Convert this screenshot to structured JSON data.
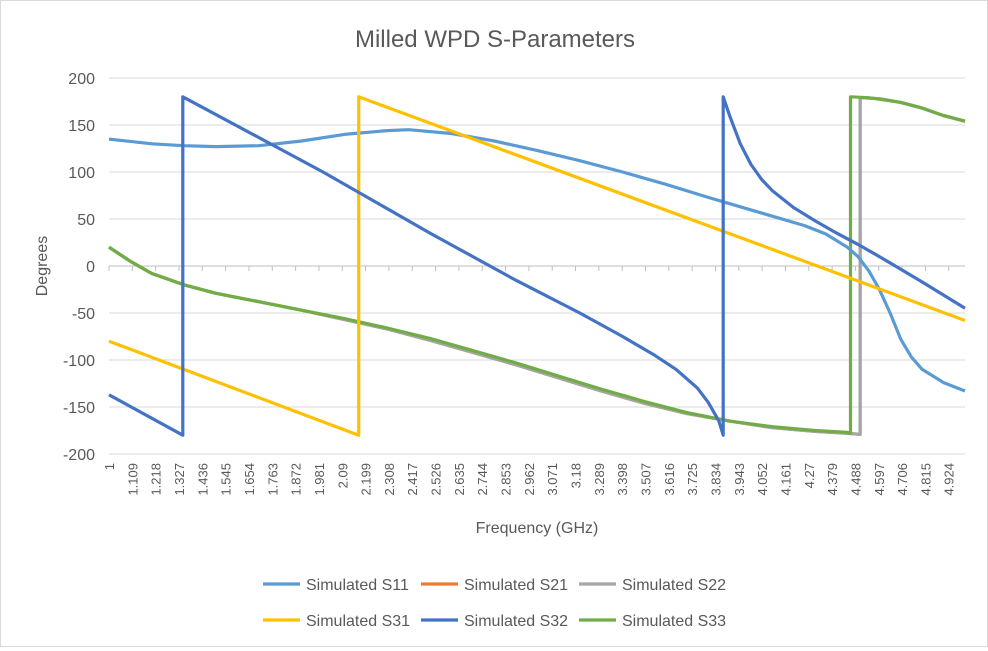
{
  "chart_data": {
    "type": "line",
    "title": "Milled WPD S-Parameters",
    "xlabel": "Frequency (GHz)",
    "ylabel": "Degrees",
    "xlim": [
      1,
      5
    ],
    "ylim": [
      -200,
      200
    ],
    "y_ticks": [
      200,
      150,
      100,
      50,
      0,
      -50,
      -100,
      -150,
      -200
    ],
    "x_tick_labels": [
      "1",
      "1.109",
      "1.218",
      "1.327",
      "1.436",
      "1.545",
      "1.654",
      "1.763",
      "1.872",
      "1.981",
      "2.09",
      "2.199",
      "2.308",
      "2.417",
      "2.526",
      "2.635",
      "2.744",
      "2.853",
      "2.962",
      "3.071",
      "3.18",
      "3.289",
      "3.398",
      "3.507",
      "3.616",
      "3.725",
      "3.834",
      "3.943",
      "4.052",
      "4.161",
      "4.27",
      "4.379",
      "4.488",
      "4.597",
      "4.706",
      "4.815",
      "4.924"
    ],
    "grid": "horizontal",
    "legend_position": "bottom",
    "series": [
      {
        "name": "Simulated S11",
        "color": "#5b9bd5",
        "points": [
          [
            1,
            135
          ],
          [
            1.2,
            130
          ],
          [
            1.35,
            128
          ],
          [
            1.5,
            127
          ],
          [
            1.7,
            128
          ],
          [
            1.9,
            133
          ],
          [
            2.1,
            140
          ],
          [
            2.3,
            144
          ],
          [
            2.4,
            145
          ],
          [
            2.6,
            141
          ],
          [
            2.8,
            133
          ],
          [
            3.0,
            123
          ],
          [
            3.2,
            112
          ],
          [
            3.4,
            100
          ],
          [
            3.6,
            87
          ],
          [
            3.8,
            73
          ],
          [
            3.95,
            63
          ],
          [
            4.1,
            53
          ],
          [
            4.25,
            43
          ],
          [
            4.35,
            34
          ],
          [
            4.45,
            20
          ],
          [
            4.5,
            10
          ],
          [
            4.55,
            -5
          ],
          [
            4.6,
            -25
          ],
          [
            4.65,
            -50
          ],
          [
            4.7,
            -78
          ],
          [
            4.75,
            -97
          ],
          [
            4.8,
            -110
          ],
          [
            4.9,
            -124
          ],
          [
            5.0,
            -133
          ]
        ]
      },
      {
        "name": "Simulated S21",
        "color": "#ed7d31",
        "points": [
          [
            1,
            20
          ],
          [
            1.1,
            5
          ],
          [
            1.2,
            -8
          ],
          [
            1.35,
            -20
          ],
          [
            1.5,
            -29
          ],
          [
            1.7,
            -38
          ],
          [
            1.9,
            -47
          ],
          [
            2.1,
            -57
          ],
          [
            2.3,
            -67
          ],
          [
            2.5,
            -79
          ],
          [
            2.7,
            -92
          ],
          [
            2.9,
            -105
          ],
          [
            3.1,
            -119
          ],
          [
            3.3,
            -133
          ],
          [
            3.5,
            -146
          ],
          [
            3.7,
            -157
          ],
          [
            3.9,
            -165
          ],
          [
            4.1,
            -172
          ],
          [
            4.3,
            -176
          ],
          [
            4.45,
            -178
          ],
          [
            4.51,
            -179
          ],
          [
            4.51,
            179
          ],
          [
            4.6,
            178
          ],
          [
            4.7,
            174
          ],
          [
            4.8,
            168
          ],
          [
            4.9,
            160
          ],
          [
            5.0,
            154
          ]
        ]
      },
      {
        "name": "Simulated S22",
        "color": "#a5a5a5",
        "points": [
          [
            1,
            20
          ],
          [
            1.1,
            5
          ],
          [
            1.2,
            -8
          ],
          [
            1.35,
            -20
          ],
          [
            1.5,
            -29
          ],
          [
            1.7,
            -38
          ],
          [
            1.9,
            -47
          ],
          [
            2.1,
            -57
          ],
          [
            2.3,
            -67
          ],
          [
            2.5,
            -79
          ],
          [
            2.7,
            -92
          ],
          [
            2.9,
            -105
          ],
          [
            3.1,
            -119
          ],
          [
            3.3,
            -133
          ],
          [
            3.5,
            -146
          ],
          [
            3.7,
            -157
          ],
          [
            3.9,
            -165
          ],
          [
            4.1,
            -172
          ],
          [
            4.3,
            -176
          ],
          [
            4.45,
            -178
          ],
          [
            4.51,
            -179
          ],
          [
            4.51,
            179
          ],
          [
            4.6,
            178
          ],
          [
            4.7,
            174
          ],
          [
            4.8,
            168
          ],
          [
            4.9,
            160
          ],
          [
            5.0,
            154
          ]
        ]
      },
      {
        "name": "Simulated S31",
        "color": "#ffc000",
        "points": [
          [
            1,
            -80
          ],
          [
            2.167,
            -180
          ],
          [
            2.167,
            180
          ],
          [
            5.0,
            -58
          ]
        ]
      },
      {
        "name": "Simulated S32",
        "color": "#4472c4",
        "points": [
          [
            1,
            -137
          ],
          [
            1.345,
            -180
          ],
          [
            1.345,
            180
          ],
          [
            2.0,
            100
          ],
          [
            2.5,
            35
          ],
          [
            2.9,
            -15
          ],
          [
            3.2,
            -50
          ],
          [
            3.4,
            -75
          ],
          [
            3.55,
            -95
          ],
          [
            3.65,
            -110
          ],
          [
            3.75,
            -130
          ],
          [
            3.8,
            -145
          ],
          [
            3.85,
            -165
          ],
          [
            3.87,
            -180
          ],
          [
            3.87,
            180
          ],
          [
            3.9,
            160
          ],
          [
            3.95,
            130
          ],
          [
            4.0,
            108
          ],
          [
            4.05,
            92
          ],
          [
            4.1,
            80
          ],
          [
            4.2,
            62
          ],
          [
            4.3,
            48
          ],
          [
            4.4,
            35
          ],
          [
            4.5,
            23
          ],
          [
            4.6,
            10
          ],
          [
            4.8,
            -17
          ],
          [
            5.0,
            -45
          ]
        ]
      },
      {
        "name": "Simulated S33",
        "color": "#70ad47",
        "points": [
          [
            1,
            20
          ],
          [
            1.1,
            5
          ],
          [
            1.2,
            -8
          ],
          [
            1.35,
            -20
          ],
          [
            1.5,
            -29
          ],
          [
            1.7,
            -38
          ],
          [
            1.9,
            -47
          ],
          [
            2.1,
            -56
          ],
          [
            2.3,
            -66
          ],
          [
            2.5,
            -77
          ],
          [
            2.7,
            -90
          ],
          [
            2.9,
            -103
          ],
          [
            3.1,
            -117
          ],
          [
            3.3,
            -131
          ],
          [
            3.5,
            -144
          ],
          [
            3.7,
            -156
          ],
          [
            3.9,
            -165
          ],
          [
            4.1,
            -171
          ],
          [
            4.3,
            -175
          ],
          [
            4.45,
            -177
          ],
          [
            4.465,
            -178
          ],
          [
            4.465,
            180
          ],
          [
            4.55,
            179
          ],
          [
            4.7,
            174
          ],
          [
            4.8,
            168
          ],
          [
            4.9,
            160
          ],
          [
            5.0,
            154
          ]
        ]
      }
    ]
  }
}
